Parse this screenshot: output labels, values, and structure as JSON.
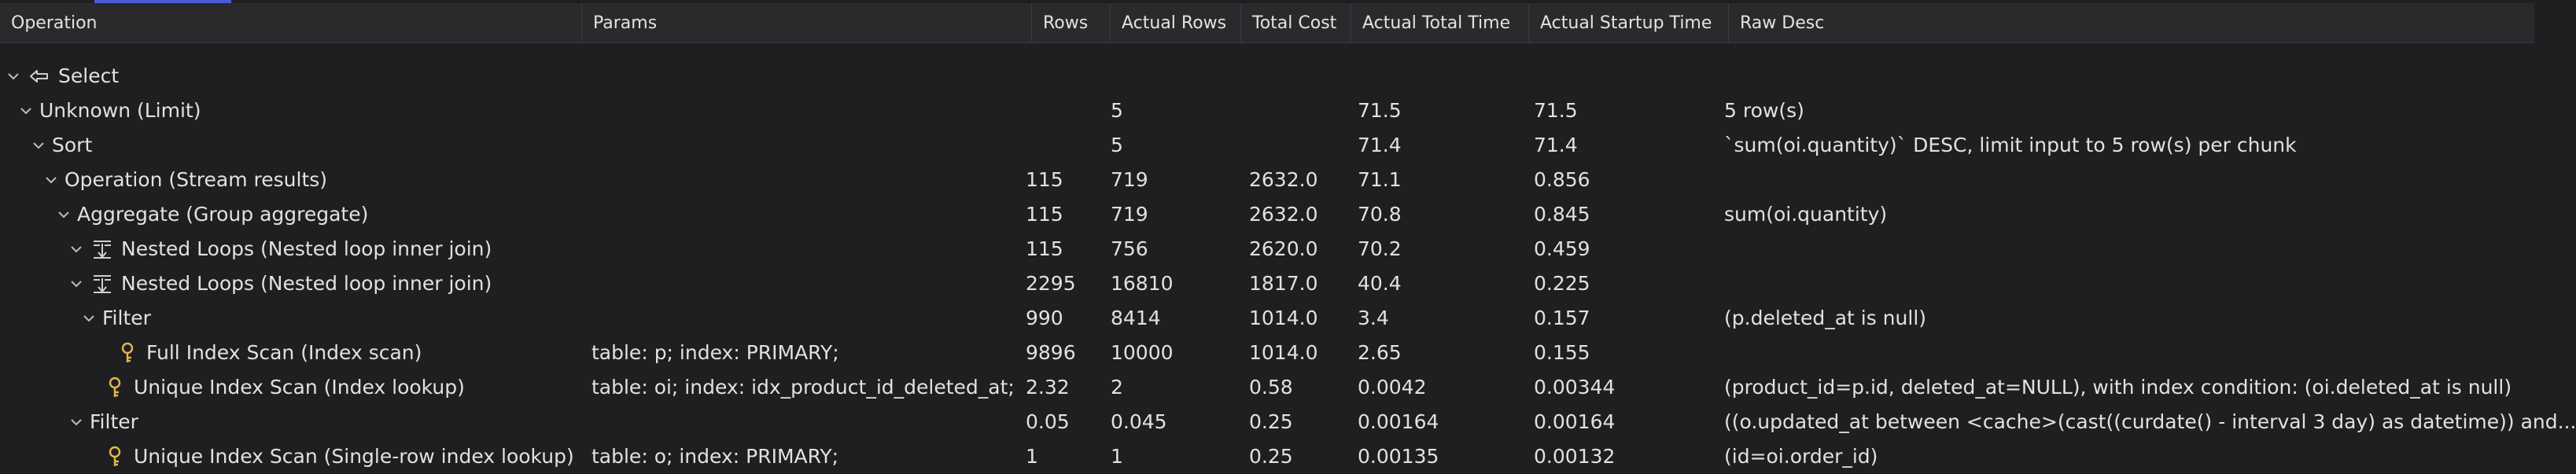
{
  "columns": {
    "operation": "Operation",
    "params": "Params",
    "rows": "Rows",
    "actual_rows": "Actual Rows",
    "total_cost": "Total Cost",
    "actual_total_time": "Actual Total Time",
    "actual_startup_time": "Actual Startup Time",
    "raw_desc": "Raw Desc"
  },
  "rows": [
    {
      "op": "Select",
      "icon": "select-arrow-icon",
      "params": "",
      "rows": "",
      "actual_rows": "",
      "total_cost": "",
      "actual_total_time": "",
      "actual_startup_time": "",
      "raw_desc": ""
    },
    {
      "op": "Unknown (Limit)",
      "icon": "",
      "params": "",
      "rows": "",
      "actual_rows": "5",
      "total_cost": "",
      "actual_total_time": "71.5",
      "actual_startup_time": "71.5",
      "raw_desc": "5 row(s)"
    },
    {
      "op": "Sort",
      "icon": "",
      "params": "",
      "rows": "",
      "actual_rows": "5",
      "total_cost": "",
      "actual_total_time": "71.4",
      "actual_startup_time": "71.4",
      "raw_desc": "`sum(oi.quantity)` DESC, limit input to 5 row(s) per chunk"
    },
    {
      "op": "Operation (Stream results)",
      "icon": "",
      "params": "",
      "rows": "115",
      "actual_rows": "719",
      "total_cost": "2632.0",
      "actual_total_time": "71.1",
      "actual_startup_time": "0.856",
      "raw_desc": ""
    },
    {
      "op": "Aggregate (Group aggregate)",
      "icon": "",
      "params": "",
      "rows": "115",
      "actual_rows": "719",
      "total_cost": "2632.0",
      "actual_total_time": "70.8",
      "actual_startup_time": "0.845",
      "raw_desc": "sum(oi.quantity)"
    },
    {
      "op": "Nested Loops (Nested loop inner join)",
      "icon": "nested-loop-icon",
      "params": "",
      "rows": "115",
      "actual_rows": "756",
      "total_cost": "2620.0",
      "actual_total_time": "70.2",
      "actual_startup_time": "0.459",
      "raw_desc": ""
    },
    {
      "op": "Nested Loops (Nested loop inner join)",
      "icon": "nested-loop-icon",
      "params": "",
      "rows": "2295",
      "actual_rows": "16810",
      "total_cost": "1817.0",
      "actual_total_time": "40.4",
      "actual_startup_time": "0.225",
      "raw_desc": ""
    },
    {
      "op": "Filter",
      "icon": "",
      "params": "",
      "rows": "990",
      "actual_rows": "8414",
      "total_cost": "1014.0",
      "actual_total_time": "3.4",
      "actual_startup_time": "0.157",
      "raw_desc": "(p.deleted_at is null)"
    },
    {
      "op": "Full Index Scan (Index scan)",
      "icon": "key-icon",
      "params": "table: p; index: PRIMARY;",
      "rows": "9896",
      "actual_rows": "10000",
      "total_cost": "1014.0",
      "actual_total_time": "2.65",
      "actual_startup_time": "0.155",
      "raw_desc": ""
    },
    {
      "op": "Unique Index Scan (Index lookup)",
      "icon": "key-icon",
      "params": "table: oi; index: idx_product_id_deleted_at;",
      "rows": "2.32",
      "actual_rows": "2",
      "total_cost": "0.58",
      "actual_total_time": "0.0042",
      "actual_startup_time": "0.00344",
      "raw_desc": "(product_id=p.id, deleted_at=NULL), with index condition: (oi.deleted_at is null)"
    },
    {
      "op": "Filter",
      "icon": "",
      "params": "",
      "rows": "0.05",
      "actual_rows": "0.045",
      "total_cost": "0.25",
      "actual_total_time": "0.00164",
      "actual_startup_time": "0.00164",
      "raw_desc": "((o.updated_at between <cache>(cast((curdate() - interval 3 day) as datetime)) and..."
    },
    {
      "op": "Unique Index Scan (Single-row index lookup)",
      "icon": "key-icon",
      "params": "table: o; index: PRIMARY;",
      "rows": "1",
      "actual_rows": "1",
      "total_cost": "0.25",
      "actual_total_time": "0.00135",
      "actual_startup_time": "0.00132",
      "raw_desc": "(id=oi.order_id)"
    }
  ]
}
